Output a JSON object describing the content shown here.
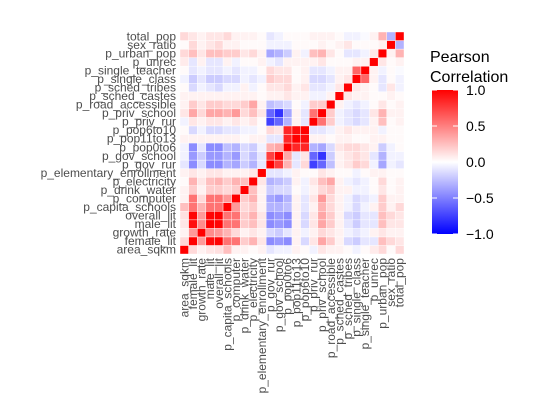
{
  "chart_data": {
    "type": "heatmap",
    "variables": [
      "area_sqkm",
      "female_lit",
      "growth_rate",
      "male_lit",
      "overall_lit",
      "p_capita_schools",
      "p_computer",
      "p_drink_water",
      "p_electricity",
      "p_elementary_enrollment",
      "p_gov_rur",
      "p_gov_school",
      "p_pop0to6",
      "p_pop11to13",
      "p_pop6to10",
      "p_priv_rur",
      "p_priv_school",
      "p_road_accessible",
      "p_sched_castes",
      "p_sched_tribes",
      "p_single_class",
      "p_single_teacher",
      "p_unrec",
      "p_urban_pop",
      "sex_ratio",
      "total_pop"
    ],
    "legend": {
      "title": [
        "Pearson",
        "Correlation"
      ],
      "range": [
        -1.0,
        1.0
      ],
      "ticks": [
        1.0,
        0.5,
        0.0,
        -0.5,
        -1.0
      ],
      "tick_labels": [
        "1.0",
        "0.5",
        "0.0",
        "−0.5",
        "−1.0"
      ],
      "colors": {
        "low": "#0000ff",
        "mid": "#ffffff",
        "high": "#ff0000"
      }
    },
    "matrix": [
      [
        1,
        0.15,
        0.05,
        0.1,
        0.12,
        0.25,
        0.05,
        0.05,
        0.02,
        0.05,
        -0.1,
        -0.05,
        -0.05,
        0.05,
        0.02,
        -0.05,
        0.1,
        0.05,
        0.05,
        0.02,
        -0.05,
        0.02,
        0.08,
        0.15,
        0.02,
        0.15
      ],
      [
        0.15,
        1,
        0.4,
        0.95,
        0.98,
        0.55,
        0.55,
        0.2,
        0.3,
        0.1,
        -0.45,
        -0.4,
        -0.45,
        0.05,
        -0.15,
        0.1,
        0.35,
        0.2,
        0.05,
        -0.15,
        -0.2,
        -0.1,
        -0.1,
        0.25,
        0.15,
        0.1
      ],
      [
        0.05,
        0.4,
        1,
        0.45,
        0.4,
        0.3,
        0.15,
        0.05,
        0.1,
        0.05,
        -0.15,
        -0.2,
        -0.1,
        0.05,
        -0.05,
        0.05,
        0.15,
        0.1,
        0.05,
        -0.05,
        -0.1,
        -0.05,
        0.05,
        0.1,
        0.05,
        0.05
      ],
      [
        0.1,
        0.95,
        0.45,
        1,
        0.98,
        0.55,
        0.55,
        0.2,
        0.25,
        0.1,
        -0.45,
        -0.4,
        -0.45,
        0.05,
        -0.15,
        0.1,
        0.35,
        0.2,
        0.05,
        -0.1,
        -0.2,
        -0.1,
        -0.1,
        0.25,
        0.1,
        0.1
      ],
      [
        0.12,
        0.98,
        0.4,
        0.98,
        1,
        0.55,
        0.55,
        0.2,
        0.3,
        0.1,
        -0.45,
        -0.4,
        -0.45,
        0.05,
        -0.15,
        0.1,
        0.35,
        0.2,
        0.05,
        -0.15,
        -0.2,
        -0.1,
        -0.1,
        0.25,
        0.15,
        0.1
      ],
      [
        0.25,
        0.55,
        0.3,
        0.55,
        0.55,
        1,
        0.4,
        0.15,
        0.2,
        0.05,
        -0.3,
        -0.3,
        -0.25,
        0.05,
        -0.1,
        0.05,
        0.3,
        0.15,
        0.05,
        -0.05,
        -0.15,
        -0.05,
        0.05,
        0.2,
        0.05,
        0.15
      ],
      [
        0.05,
        0.55,
        0.15,
        0.55,
        0.55,
        0.4,
        1,
        0.2,
        0.3,
        0.05,
        -0.35,
        -0.4,
        -0.3,
        0.05,
        -0.1,
        0.1,
        0.4,
        0.15,
        0.05,
        -0.05,
        -0.15,
        -0.1,
        -0.05,
        0.2,
        0.05,
        0.05
      ],
      [
        0.05,
        0.2,
        0.05,
        0.2,
        0.2,
        0.15,
        0.2,
        1,
        0.25,
        0.05,
        -0.2,
        -0.15,
        -0.15,
        0.02,
        -0.05,
        0.05,
        0.15,
        0.2,
        0.05,
        0.05,
        -0.05,
        -0.05,
        0.02,
        0.1,
        0.02,
        0.05
      ],
      [
        0.02,
        0.3,
        0.1,
        0.25,
        0.3,
        0.2,
        0.3,
        0.25,
        1,
        0.1,
        -0.3,
        -0.25,
        -0.2,
        0.05,
        -0.05,
        0.1,
        0.25,
        0.35,
        0.05,
        -0.05,
        -0.1,
        -0.05,
        0.02,
        0.15,
        0.02,
        0.05
      ],
      [
        0.05,
        0.1,
        0.05,
        0.1,
        0.1,
        0.05,
        0.05,
        0.05,
        0.1,
        1,
        -0.1,
        -0.1,
        -0.05,
        0.05,
        0.02,
        0.02,
        0.1,
        0.05,
        0.02,
        0.02,
        -0.05,
        0.02,
        0.05,
        0.05,
        0.02,
        0.02
      ],
      [
        -0.1,
        -0.45,
        -0.15,
        -0.45,
        -0.45,
        -0.3,
        -0.35,
        -0.2,
        -0.3,
        -0.1,
        1,
        0.75,
        0.3,
        -0.1,
        0.15,
        -0.75,
        -0.6,
        -0.25,
        0.05,
        0.1,
        0.2,
        0.15,
        -0.05,
        -0.35,
        -0.05,
        -0.1
      ],
      [
        -0.05,
        -0.4,
        -0.2,
        -0.4,
        -0.4,
        -0.3,
        -0.4,
        -0.15,
        -0.25,
        -0.1,
        0.75,
        1,
        0.35,
        -0.1,
        0.1,
        -0.6,
        -0.8,
        -0.2,
        0.05,
        0.1,
        0.15,
        0.1,
        -0.1,
        -0.3,
        -0.05,
        -0.05
      ],
      [
        -0.05,
        -0.45,
        -0.1,
        -0.45,
        -0.45,
        -0.25,
        -0.3,
        -0.15,
        -0.2,
        -0.05,
        0.3,
        0.35,
        1,
        0.85,
        0.85,
        -0.3,
        -0.35,
        -0.15,
        0.1,
        0.15,
        0.15,
        0.1,
        0.05,
        -0.2,
        -0.05,
        0.02
      ],
      [
        0.05,
        0.05,
        0.05,
        0.05,
        0.05,
        0.05,
        0.05,
        0.02,
        0.05,
        0.05,
        -0.1,
        -0.1,
        0.85,
        1,
        0.95,
        0.05,
        0.05,
        0.02,
        0.05,
        0.05,
        0.02,
        0.02,
        0.05,
        0.05,
        0.02,
        0.02
      ],
      [
        0.02,
        -0.15,
        -0.05,
        -0.15,
        -0.15,
        -0.1,
        -0.1,
        -0.05,
        -0.05,
        0.02,
        0.15,
        0.1,
        0.85,
        0.95,
        1,
        -0.1,
        -0.1,
        -0.05,
        0.05,
        0.1,
        0.05,
        0.05,
        0.05,
        -0.05,
        0.02,
        0.02
      ],
      [
        -0.05,
        0.1,
        0.05,
        0.1,
        0.1,
        0.05,
        0.1,
        0.05,
        0.1,
        0.02,
        -0.75,
        -0.6,
        -0.3,
        0.05,
        -0.1,
        1,
        0.55,
        0.2,
        -0.05,
        -0.1,
        -0.15,
        -0.1,
        0.05,
        0.25,
        0.02,
        0.05
      ],
      [
        0.1,
        0.35,
        0.15,
        0.35,
        0.35,
        0.3,
        0.4,
        0.15,
        0.25,
        0.1,
        -0.6,
        -0.8,
        -0.35,
        0.05,
        -0.1,
        0.55,
        1,
        0.2,
        -0.05,
        -0.1,
        -0.15,
        -0.1,
        0.1,
        0.3,
        0.05,
        0.05
      ],
      [
        0.05,
        0.2,
        0.1,
        0.2,
        0.2,
        0.15,
        0.15,
        0.2,
        0.35,
        0.05,
        -0.25,
        -0.2,
        -0.15,
        0.02,
        -0.05,
        0.2,
        0.2,
        1,
        0.05,
        -0.05,
        -0.1,
        -0.05,
        0.02,
        0.1,
        0.02,
        0.05
      ],
      [
        0.05,
        0.05,
        0.05,
        0.05,
        0.05,
        0.05,
        0.05,
        0.05,
        0.05,
        0.02,
        0.05,
        0.05,
        0.1,
        0.05,
        0.05,
        -0.05,
        -0.05,
        0.05,
        1,
        0.1,
        0.05,
        0.05,
        0.02,
        0.02,
        0.05,
        0.02
      ],
      [
        0.02,
        -0.15,
        -0.05,
        -0.1,
        -0.15,
        -0.05,
        -0.05,
        0.05,
        -0.05,
        0.02,
        0.1,
        0.1,
        0.15,
        0.05,
        0.1,
        -0.1,
        -0.1,
        -0.05,
        0.1,
        1,
        0.1,
        0.05,
        0.02,
        -0.1,
        0.1,
        -0.05
      ],
      [
        -0.05,
        -0.2,
        -0.1,
        -0.2,
        -0.2,
        -0.15,
        -0.15,
        -0.05,
        -0.1,
        -0.05,
        0.2,
        0.15,
        0.15,
        0.02,
        0.05,
        -0.15,
        -0.15,
        -0.1,
        0.05,
        0.1,
        1,
        0.6,
        0.05,
        -0.1,
        0.02,
        -0.05
      ],
      [
        0.02,
        -0.1,
        -0.05,
        -0.1,
        -0.1,
        -0.05,
        -0.1,
        -0.05,
        -0.05,
        0.02,
        0.15,
        0.1,
        0.1,
        0.02,
        0.05,
        -0.1,
        -0.1,
        -0.05,
        0.05,
        0.05,
        0.6,
        1,
        0.05,
        -0.05,
        0.02,
        -0.02
      ],
      [
        0.08,
        -0.1,
        0.05,
        -0.1,
        -0.1,
        0.05,
        -0.05,
        0.02,
        0.02,
        0.05,
        -0.05,
        -0.1,
        0.05,
        0.05,
        0.05,
        0.05,
        0.1,
        0.02,
        0.02,
        0.02,
        0.05,
        0.05,
        1,
        0.1,
        0.02,
        0.05
      ],
      [
        0.15,
        0.25,
        0.1,
        0.25,
        0.25,
        0.2,
        0.2,
        0.1,
        0.15,
        0.05,
        -0.35,
        -0.3,
        -0.2,
        0.05,
        -0.05,
        0.25,
        0.3,
        0.1,
        0.02,
        -0.1,
        -0.1,
        -0.05,
        0.1,
        1,
        0.05,
        0.3
      ],
      [
        0.02,
        0.15,
        0.05,
        0.1,
        0.15,
        0.05,
        0.05,
        0.02,
        0.02,
        0.02,
        -0.05,
        -0.05,
        -0.05,
        0.02,
        0.02,
        0.02,
        0.05,
        0.02,
        0.05,
        0.1,
        0.02,
        0.02,
        0.02,
        0.05,
        1,
        -0.3
      ],
      [
        0.15,
        0.1,
        0.05,
        0.1,
        0.1,
        0.15,
        0.05,
        0.05,
        0.05,
        0.02,
        -0.1,
        -0.05,
        0.02,
        0.02,
        0.02,
        0.05,
        0.05,
        0.05,
        0.02,
        -0.05,
        -0.05,
        -0.02,
        0.05,
        0.3,
        -0.3,
        1
      ]
    ]
  }
}
